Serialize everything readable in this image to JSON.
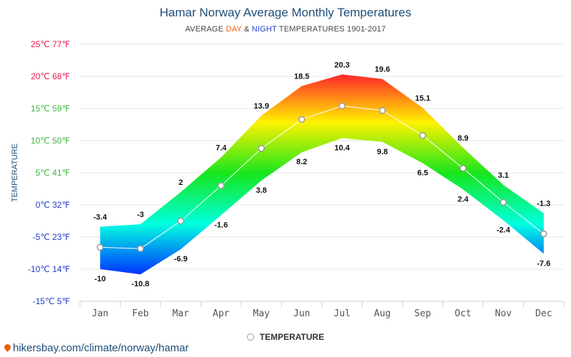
{
  "header": {
    "title": "Hamar Norway Average Monthly Temperatures",
    "subtitle_prefix": "AVERAGE ",
    "subtitle_day": "DAY",
    "subtitle_mid": " & ",
    "subtitle_night": "NIGHT",
    "subtitle_suffix": " TEMPERATURES 1901-2017"
  },
  "legend": {
    "label": "TEMPERATURE"
  },
  "footer": {
    "text": "hikersbay.com/climate/norway/hamar"
  },
  "colors": {
    "title": "#1f4e79",
    "day": "#e8600a",
    "night": "#1e3cc8",
    "grid": "#e6e6e6",
    "band_warm": "#ff1a2e",
    "band_mid": "#fff200",
    "band_green": "#17e61c",
    "band_cyan": "#00ffe0",
    "band_cold": "#0030ff"
  },
  "chart_data": {
    "type": "area",
    "title": "Hamar Norway Average Monthly Temperatures",
    "ylabel": "TEMPERATURE",
    "categories": [
      "Jan",
      "Feb",
      "Mar",
      "Apr",
      "May",
      "Jun",
      "Jul",
      "Aug",
      "Sep",
      "Oct",
      "Nov",
      "Dec"
    ],
    "ylim": [
      -15,
      25
    ],
    "yticks": [
      {
        "value": 25,
        "label": "25℃ 77℉",
        "color": "#e8184d"
      },
      {
        "value": 20,
        "label": "20℃ 68℉",
        "color": "#e8184d"
      },
      {
        "value": 15,
        "label": "15℃ 59℉",
        "color": "#3cb83c"
      },
      {
        "value": 10,
        "label": "10℃ 50℉",
        "color": "#3cb83c"
      },
      {
        "value": 5,
        "label": "5℃ 41℉",
        "color": "#3cb83c"
      },
      {
        "value": 0,
        "label": "0℃ 32℉",
        "color": "#1e3cc8"
      },
      {
        "value": -5,
        "label": "-5℃ 23℉",
        "color": "#1e3cc8"
      },
      {
        "value": -10,
        "label": "-10℃ 14℉",
        "color": "#1e3cc8"
      },
      {
        "value": -15,
        "label": "-15℃ 5℉",
        "color": "#1e3cc8"
      }
    ],
    "series": [
      {
        "name": "DAY",
        "values": [
          -3.4,
          -3,
          2,
          7.4,
          13.9,
          18.5,
          20.3,
          19.6,
          15.1,
          8.9,
          3.1,
          -1.3
        ]
      },
      {
        "name": "NIGHT",
        "values": [
          -10,
          -10.8,
          -6.9,
          -1.6,
          3.8,
          8.2,
          10.4,
          9.8,
          6.5,
          2.4,
          -2.4,
          -7.6
        ]
      },
      {
        "name": "TEMPERATURE",
        "values": [
          -6.6,
          -6.8,
          -2.5,
          3,
          8.8,
          13.3,
          15.4,
          14.7,
          10.8,
          5.7,
          0.4,
          -4.5
        ]
      }
    ],
    "grid": true,
    "legend": "bottom-center"
  }
}
